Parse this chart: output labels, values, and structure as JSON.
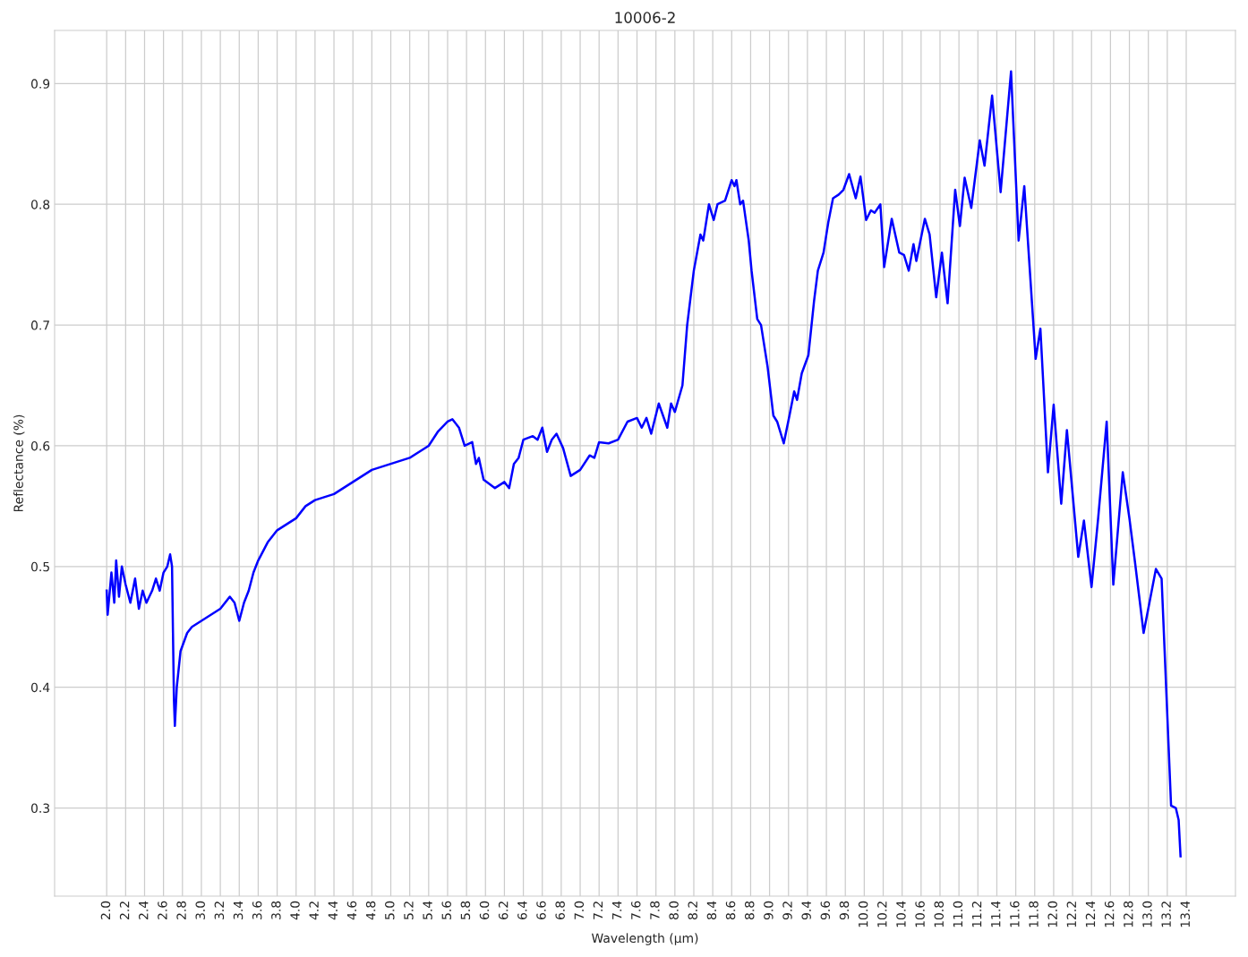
{
  "chart_data": {
    "type": "line",
    "title": "10006-2",
    "xlabel": "Wavelength (µm)",
    "ylabel": "Reflectance (%)",
    "series": [
      {
        "color": "#0000ff",
        "x": [
          2.0,
          2.01,
          2.05,
          2.08,
          2.1,
          2.13,
          2.16,
          2.2,
          2.25,
          2.3,
          2.34,
          2.38,
          2.42,
          2.48,
          2.52,
          2.56,
          2.6,
          2.64,
          2.67,
          2.69,
          2.7,
          2.71,
          2.72,
          2.74,
          2.78,
          2.85,
          2.9,
          3.0,
          3.1,
          3.2,
          3.3,
          3.35,
          3.4,
          3.45,
          3.5,
          3.55,
          3.6,
          3.7,
          3.8,
          3.9,
          4.0,
          4.1,
          4.2,
          4.4,
          4.6,
          4.8,
          5.0,
          5.2,
          5.4,
          5.5,
          5.6,
          5.65,
          5.72,
          5.78,
          5.86,
          5.9,
          5.93,
          5.98,
          6.1,
          6.2,
          6.25,
          6.3,
          6.35,
          6.4,
          6.5,
          6.55,
          6.6,
          6.65,
          6.7,
          6.75,
          6.82,
          6.9,
          7.0,
          7.1,
          7.15,
          7.2,
          7.3,
          7.4,
          7.5,
          7.6,
          7.65,
          7.7,
          7.75,
          7.83,
          7.92,
          7.96,
          8.0,
          8.08,
          8.13,
          8.2,
          8.27,
          8.3,
          8.36,
          8.41,
          8.45,
          8.53,
          8.6,
          8.63,
          8.65,
          8.69,
          8.72,
          8.78,
          8.81,
          8.87,
          8.91,
          8.98,
          9.04,
          9.08,
          9.15,
          9.21,
          9.26,
          9.29,
          9.34,
          9.41,
          9.47,
          9.51,
          9.57,
          9.62,
          9.67,
          9.73,
          9.78,
          9.84,
          9.91,
          9.96,
          10.02,
          10.07,
          10.11,
          10.17,
          10.21,
          10.29,
          10.37,
          10.42,
          10.47,
          10.52,
          10.55,
          10.64,
          10.69,
          10.76,
          10.82,
          10.88,
          10.96,
          11.01,
          11.06,
          11.13,
          11.22,
          11.27,
          11.35,
          11.44,
          11.55,
          11.63,
          11.69,
          11.81,
          11.86,
          11.94,
          12.0,
          12.08,
          12.14,
          12.26,
          12.32,
          12.4,
          12.47,
          12.56,
          12.63,
          12.73,
          12.8,
          12.86,
          12.95,
          13.08,
          13.14,
          13.24,
          13.29,
          13.32,
          13.34
        ],
        "values": [
          0.48,
          0.46,
          0.495,
          0.47,
          0.505,
          0.475,
          0.5,
          0.485,
          0.47,
          0.49,
          0.465,
          0.48,
          0.47,
          0.48,
          0.49,
          0.48,
          0.495,
          0.5,
          0.51,
          0.5,
          0.445,
          0.39,
          0.368,
          0.4,
          0.43,
          0.445,
          0.45,
          0.455,
          0.46,
          0.465,
          0.475,
          0.47,
          0.455,
          0.47,
          0.48,
          0.495,
          0.505,
          0.52,
          0.53,
          0.535,
          0.54,
          0.55,
          0.555,
          0.56,
          0.57,
          0.58,
          0.585,
          0.59,
          0.6,
          0.612,
          0.62,
          0.622,
          0.615,
          0.6,
          0.603,
          0.585,
          0.59,
          0.572,
          0.565,
          0.57,
          0.565,
          0.585,
          0.59,
          0.605,
          0.608,
          0.605,
          0.615,
          0.595,
          0.605,
          0.61,
          0.598,
          0.575,
          0.58,
          0.592,
          0.59,
          0.603,
          0.602,
          0.605,
          0.62,
          0.623,
          0.615,
          0.623,
          0.61,
          0.635,
          0.615,
          0.635,
          0.628,
          0.65,
          0.7,
          0.745,
          0.775,
          0.77,
          0.8,
          0.787,
          0.8,
          0.803,
          0.82,
          0.815,
          0.82,
          0.8,
          0.803,
          0.77,
          0.745,
          0.705,
          0.7,
          0.665,
          0.625,
          0.62,
          0.602,
          0.625,
          0.645,
          0.638,
          0.66,
          0.675,
          0.72,
          0.745,
          0.76,
          0.785,
          0.805,
          0.808,
          0.812,
          0.825,
          0.805,
          0.823,
          0.787,
          0.795,
          0.793,
          0.8,
          0.748,
          0.788,
          0.76,
          0.758,
          0.745,
          0.767,
          0.753,
          0.788,
          0.775,
          0.723,
          0.76,
          0.718,
          0.812,
          0.782,
          0.822,
          0.797,
          0.853,
          0.832,
          0.89,
          0.81,
          0.91,
          0.77,
          0.815,
          0.672,
          0.697,
          0.578,
          0.634,
          0.552,
          0.613,
          0.508,
          0.538,
          0.483,
          0.54,
          0.62,
          0.485,
          0.578,
          0.54,
          0.503,
          0.445,
          0.498,
          0.49,
          0.302,
          0.3,
          0.29,
          0.26
        ]
      }
    ],
    "xlim": [
      1.45,
      13.92
    ],
    "ylim": [
      0.227,
      0.944
    ],
    "xticks": [
      {
        "value": 2.0,
        "label": "2.0"
      },
      {
        "value": 2.2,
        "label": "2.2"
      },
      {
        "value": 2.4,
        "label": "2.4"
      },
      {
        "value": 2.6,
        "label": "2.6"
      },
      {
        "value": 2.8,
        "label": "2.8"
      },
      {
        "value": 3.0,
        "label": "3.0"
      },
      {
        "value": 3.2,
        "label": "3.2"
      },
      {
        "value": 3.4,
        "label": "3.4"
      },
      {
        "value": 3.6,
        "label": "3.6"
      },
      {
        "value": 3.8,
        "label": "3.8"
      },
      {
        "value": 4.0,
        "label": "4.0"
      },
      {
        "value": 4.2,
        "label": "4.2"
      },
      {
        "value": 4.4,
        "label": "4.4"
      },
      {
        "value": 4.6,
        "label": "4.6"
      },
      {
        "value": 4.8,
        "label": "4.8"
      },
      {
        "value": 5.0,
        "label": "5.0"
      },
      {
        "value": 5.2,
        "label": "5.2"
      },
      {
        "value": 5.4,
        "label": "5.4"
      },
      {
        "value": 5.6,
        "label": "5.6"
      },
      {
        "value": 5.8,
        "label": "5.8"
      },
      {
        "value": 6.0,
        "label": "6.0"
      },
      {
        "value": 6.2,
        "label": "6.2"
      },
      {
        "value": 6.4,
        "label": "6.4"
      },
      {
        "value": 6.6,
        "label": "6.6"
      },
      {
        "value": 6.8,
        "label": "6.8"
      },
      {
        "value": 7.0,
        "label": "7.0"
      },
      {
        "value": 7.2,
        "label": "7.2"
      },
      {
        "value": 7.4,
        "label": "7.4"
      },
      {
        "value": 7.6,
        "label": "7.6"
      },
      {
        "value": 7.8,
        "label": "7.8"
      },
      {
        "value": 8.0,
        "label": "8.0"
      },
      {
        "value": 8.2,
        "label": "8.2"
      },
      {
        "value": 8.4,
        "label": "8.4"
      },
      {
        "value": 8.6,
        "label": "8.6"
      },
      {
        "value": 8.8,
        "label": "8.8"
      },
      {
        "value": 9.0,
        "label": "9.0"
      },
      {
        "value": 9.2,
        "label": "9.2"
      },
      {
        "value": 9.4,
        "label": "9.4"
      },
      {
        "value": 9.6,
        "label": "9.6"
      },
      {
        "value": 9.8,
        "label": "9.8"
      },
      {
        "value": 10.0,
        "label": "10.0"
      },
      {
        "value": 10.2,
        "label": "10.2"
      },
      {
        "value": 10.4,
        "label": "10.4"
      },
      {
        "value": 10.6,
        "label": "10.6"
      },
      {
        "value": 10.8,
        "label": "10.8"
      },
      {
        "value": 11.0,
        "label": "11.0"
      },
      {
        "value": 11.2,
        "label": "11.2"
      },
      {
        "value": 11.4,
        "label": "11.4"
      },
      {
        "value": 11.6,
        "label": "11.6"
      },
      {
        "value": 11.8,
        "label": "11.8"
      },
      {
        "value": 12.0,
        "label": "12.0"
      },
      {
        "value": 12.2,
        "label": "12.2"
      },
      {
        "value": 12.4,
        "label": "12.4"
      },
      {
        "value": 12.6,
        "label": "12.6"
      },
      {
        "value": 12.8,
        "label": "12.8"
      },
      {
        "value": 13.0,
        "label": "13.0"
      },
      {
        "value": 13.2,
        "label": "13.2"
      },
      {
        "value": 13.4,
        "label": "13.4"
      }
    ],
    "yticks": [
      0.3,
      0.4,
      0.5,
      0.6,
      0.7,
      0.8,
      0.9
    ],
    "grid": true,
    "marker": "none",
    "line_style": "solid"
  }
}
